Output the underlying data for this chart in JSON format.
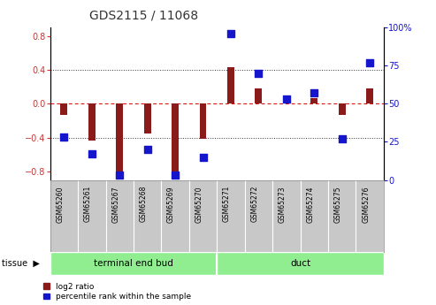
{
  "title": "GDS2115 / 11068",
  "samples": [
    "GSM65260",
    "GSM65261",
    "GSM65267",
    "GSM65268",
    "GSM65269",
    "GSM65270",
    "GSM65271",
    "GSM65272",
    "GSM65273",
    "GSM65274",
    "GSM65275",
    "GSM65276"
  ],
  "log2_ratio": [
    -0.13,
    -0.43,
    -0.83,
    -0.35,
    -0.83,
    -0.41,
    0.43,
    0.18,
    0.04,
    0.07,
    -0.13,
    0.18
  ],
  "percentile_rank": [
    28,
    17,
    3,
    20,
    3,
    15,
    96,
    70,
    53,
    57,
    27,
    77
  ],
  "groups": [
    {
      "label": "terminal end bud",
      "start": 0,
      "end": 6,
      "color": "#90EE90"
    },
    {
      "label": "duct",
      "start": 6,
      "end": 12,
      "color": "#90EE90"
    }
  ],
  "ylim_left": [
    -0.9,
    0.9
  ],
  "ylim_right": [
    0,
    100
  ],
  "left_ticks": [
    -0.8,
    -0.4,
    0.0,
    0.4,
    0.8
  ],
  "right_ticks": [
    0,
    25,
    50,
    75,
    100
  ],
  "bar_color": "#8B1A1A",
  "dot_color": "#1515CC",
  "zero_line_color": "#cc0000",
  "bg_color": "#ffffff",
  "plot_bg": "#ffffff",
  "tissue_label": "tissue",
  "legend_log2": "log2 ratio",
  "legend_pct": "percentile rank within the sample",
  "label_bg": "#c8c8c8"
}
